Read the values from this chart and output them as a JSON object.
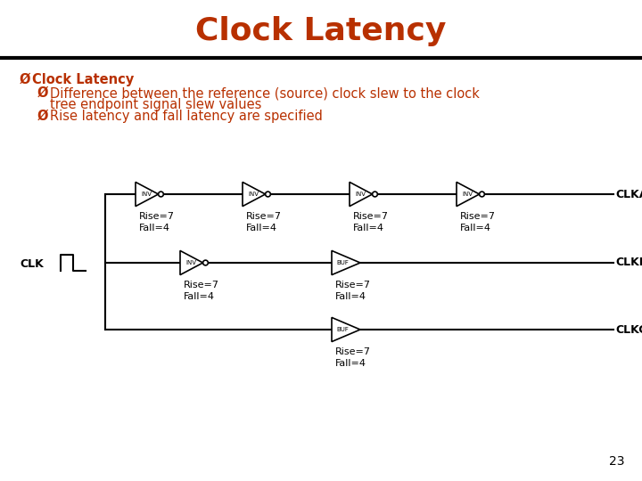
{
  "title": "Clock Latency",
  "title_color": "#B83000",
  "title_fontsize": 26,
  "bg_color": "#FFFFFF",
  "bullet_color": "#B83000",
  "bullet_fontsize": 10.5,
  "diagram_color": "#000000",
  "bullet1": "Clock Latency",
  "bullet2a": "Difference between the reference (source) clock slew to the clock",
  "bullet2b": "tree endpoint signal slew values",
  "bullet3": "Rise latency and fall latency are specified",
  "page_number": "23",
  "clka_label": "CLKA",
  "clkb_label": "CLKB",
  "clkc_label": "CLKC",
  "clk_label": "CLK",
  "inv_label": "INV",
  "buf_label": "BUF",
  "rise_label": "Rise=7",
  "fall_label": "Fall=4"
}
